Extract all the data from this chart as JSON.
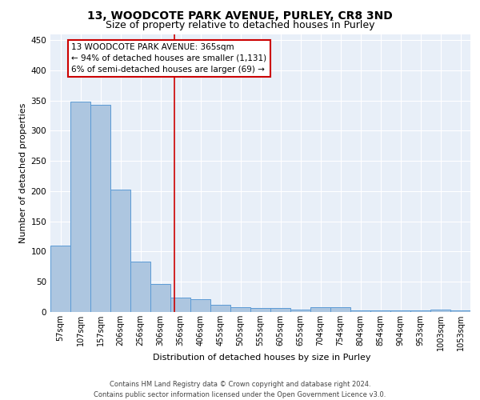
{
  "title1": "13, WOODCOTE PARK AVENUE, PURLEY, CR8 3ND",
  "title2": "Size of property relative to detached houses in Purley",
  "xlabel": "Distribution of detached houses by size in Purley",
  "ylabel": "Number of detached properties",
  "categories": [
    "57sqm",
    "107sqm",
    "157sqm",
    "206sqm",
    "256sqm",
    "306sqm",
    "356sqm",
    "406sqm",
    "455sqm",
    "505sqm",
    "555sqm",
    "605sqm",
    "655sqm",
    "704sqm",
    "754sqm",
    "804sqm",
    "854sqm",
    "904sqm",
    "953sqm",
    "1003sqm",
    "1053sqm"
  ],
  "values": [
    110,
    348,
    343,
    203,
    84,
    46,
    24,
    21,
    12,
    8,
    6,
    6,
    4,
    8,
    8,
    3,
    2,
    2,
    2,
    4,
    3
  ],
  "bar_color": "#adc6e0",
  "bar_edge_color": "#5b9bd5",
  "subject_line_color": "#cc0000",
  "annotation_text": "13 WOODCOTE PARK AVENUE: 365sqm\n← 94% of detached houses are smaller (1,131)\n6% of semi-detached houses are larger (69) →",
  "annotation_box_color": "#cc0000",
  "ylim": [
    0,
    460
  ],
  "plot_bg_color": "#e8eff8",
  "grid_color": "#ffffff",
  "footer_text": "Contains HM Land Registry data © Crown copyright and database right 2024.\nContains public sector information licensed under the Open Government Licence v3.0.",
  "title1_fontsize": 10,
  "title2_fontsize": 9,
  "label_fontsize": 8,
  "tick_fontsize": 7,
  "annotation_fontsize": 7.5,
  "footer_fontsize": 6
}
